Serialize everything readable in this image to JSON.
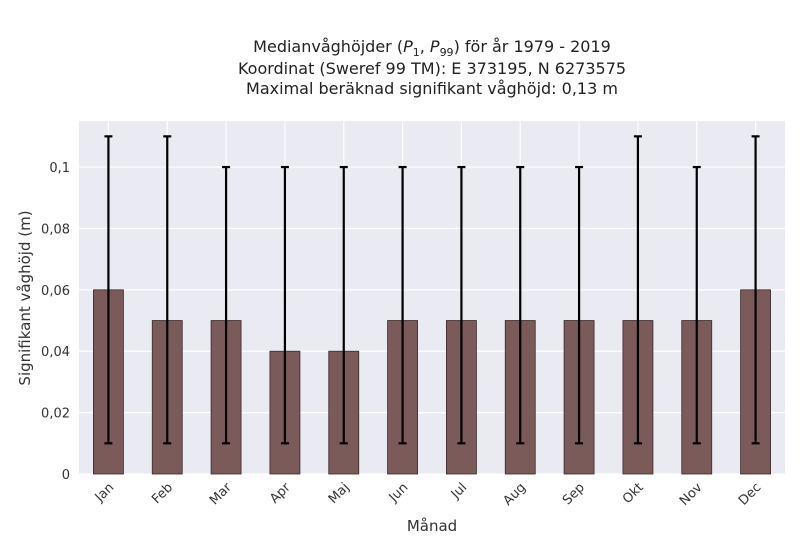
{
  "chart_data": {
    "type": "bar",
    "title_lines": [
      "Medianvåghöjder (P1, P99) för år 1979 - 2019",
      "Koordinat (Sweref 99 TM): E 373195, N 6273575",
      "Maximal beräknad signifikant våghöjd: 0,13 m"
    ],
    "xlabel": "Månad",
    "ylabel": "Signifikant våghöjd (m)",
    "categories": [
      "Jan",
      "Feb",
      "Mar",
      "Apr",
      "Maj",
      "Jun",
      "Jul",
      "Aug",
      "Sep",
      "Okt",
      "Nov",
      "Dec"
    ],
    "values": [
      0.06,
      0.05,
      0.05,
      0.04,
      0.04,
      0.05,
      0.05,
      0.05,
      0.05,
      0.05,
      0.05,
      0.06
    ],
    "p1": [
      0.01,
      0.01,
      0.01,
      0.01,
      0.01,
      0.01,
      0.01,
      0.01,
      0.01,
      0.01,
      0.01,
      0.01
    ],
    "p99": [
      0.11,
      0.11,
      0.1,
      0.1,
      0.1,
      0.1,
      0.1,
      0.1,
      0.1,
      0.11,
      0.1,
      0.11
    ],
    "ylim": [
      0,
      0.115
    ],
    "yticks": [
      0,
      0.02,
      0.04,
      0.06,
      0.08,
      0.1
    ],
    "ytick_labels": [
      "0",
      "0,02",
      "0,04",
      "0,06",
      "0,08",
      "0,1"
    ],
    "grid": true,
    "colors": {
      "bar": "#7b5a5a",
      "bar_edge": "#3a2a2a",
      "error": "#000000",
      "background": "#eaeaf2",
      "grid": "#ffffff"
    }
  }
}
